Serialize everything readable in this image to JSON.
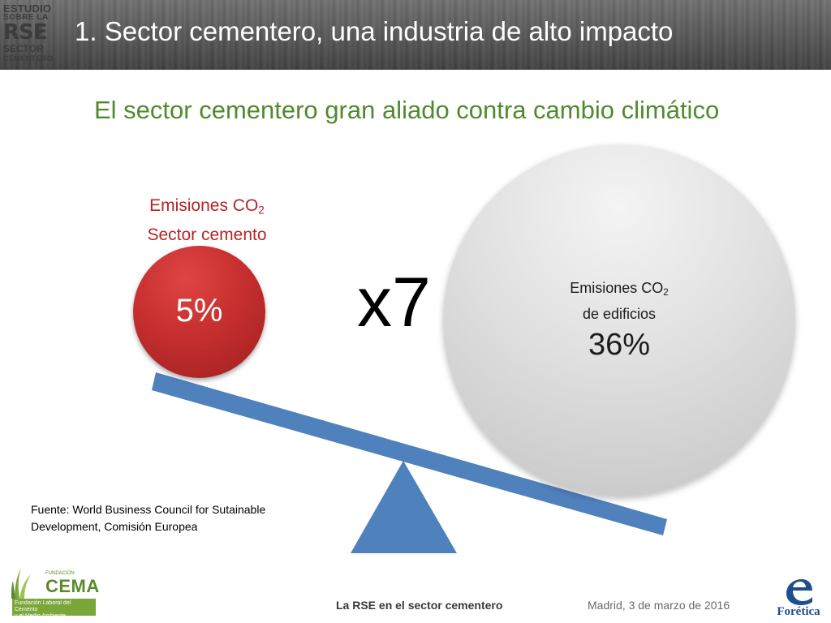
{
  "header": {
    "logo_lines": [
      "ESTUDIO",
      "SOBRE LA",
      "RSE",
      "EN EL",
      "SECTOR",
      "CEMENTERO"
    ],
    "title": "1. Sector cementero, una industria de alto impacto"
  },
  "subtitle": "El sector cementero gran aliado contra cambio climático",
  "cement": {
    "label_line1_prefix": "Emisiones CO",
    "label_line1_sub": "2",
    "label_line2": "Sector cemento",
    "value": "5%"
  },
  "multiplier": "x7",
  "buildings": {
    "label_line1_prefix": "Emisiones CO",
    "label_line1_sub": "2",
    "label_line2": "de edificios",
    "value": "36%"
  },
  "source": {
    "line1": "Fuente: World Business Council for Sutainable",
    "line2": "Development, Comisión Europea"
  },
  "footer": {
    "fund_small": "FUNDACIÓN",
    "fund_name": "CEMA",
    "fund_caption_line1": "Fundación Laboral del Cemento",
    "fund_caption_line2": "y el Medio Ambiente",
    "center_text": "La RSE en el sector cementero",
    "date": "Madrid, 3 de marzo de 2016",
    "brand": "Forética"
  },
  "colors": {
    "title_green": "#4f8a2e",
    "cement_red": "#b52424",
    "seesaw_blue": "#4f81bd"
  },
  "icons": [
    "seesaw-beam",
    "seesaw-fulcrum",
    "cema-leaves-icon",
    "foretica-e-icon"
  ]
}
